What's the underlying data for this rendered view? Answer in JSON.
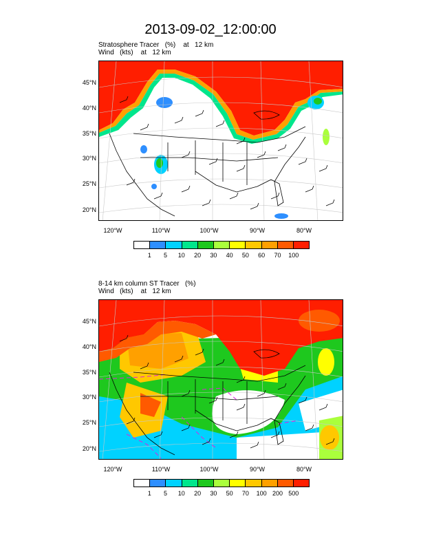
{
  "title": "2013-09-02_12:00:00",
  "panels": [
    {
      "header_line1": "Stratosphere Tracer   (%)    at   12 km",
      "header_line2": "Wind   (kts)    at   12 km",
      "lat_labels": [
        "45°N",
        "40°N",
        "35°N",
        "30°N",
        "25°N",
        "20°N"
      ],
      "lon_labels": [
        "120°W",
        "110°W",
        "100°W",
        "90°W",
        "80°W"
      ],
      "colorbar_labels": [
        "1",
        "5",
        "10",
        "20",
        "30",
        "40",
        "50",
        "60",
        "70",
        "100"
      ],
      "colorbar_colors": [
        "#ffffff",
        "#2e8fff",
        "#00d2ff",
        "#00e68c",
        "#1ec81e",
        "#aaff3c",
        "#ffff00",
        "#ffc800",
        "#ffa000",
        "#ff5a00",
        "#ff1e00"
      ]
    },
    {
      "header_line1": "8-14 km column ST Tracer   (%)",
      "header_line2": "Wind   (kts)    at   12 km",
      "lat_labels": [
        "45°N",
        "40°N",
        "35°N",
        "30°N",
        "25°N",
        "20°N"
      ],
      "lon_labels": [
        "120°W",
        "110°W",
        "100°W",
        "90°W",
        "80°W"
      ],
      "colorbar_labels": [
        "1",
        "5",
        "10",
        "20",
        "30",
        "50",
        "70",
        "100",
        "200",
        "500"
      ],
      "colorbar_colors": [
        "#ffffff",
        "#2e8fff",
        "#00d2ff",
        "#00e68c",
        "#1ec81e",
        "#aaff3c",
        "#ffff00",
        "#ffc800",
        "#ffa000",
        "#ff5a00",
        "#ff1e00"
      ]
    }
  ]
}
